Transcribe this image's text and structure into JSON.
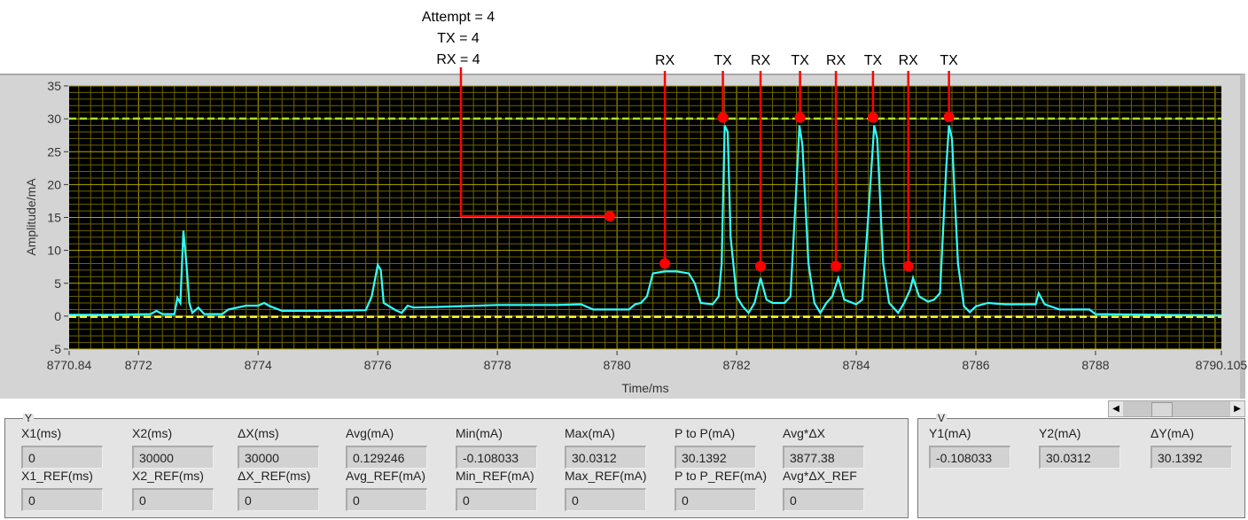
{
  "chart_data": {
    "type": "line",
    "xlabel": "Time/ms",
    "ylabel": "Amplitude/mA",
    "xlim": [
      8770.84,
      8790.105
    ],
    "ylim": [
      -5,
      35
    ],
    "x_tick_labels": [
      "8770.84",
      "8772",
      "8774",
      "8776",
      "8778",
      "8780",
      "8782",
      "8784",
      "8786",
      "8788",
      "8790.105"
    ],
    "x_ticks": [
      8770.84,
      8772,
      8774,
      8776,
      8778,
      8780,
      8782,
      8784,
      8786,
      8788,
      8790.105
    ],
    "y_ticks": [
      -5,
      0,
      5,
      10,
      15,
      20,
      25,
      30,
      35
    ],
    "y_tick_labels": [
      "-5",
      "0",
      "5",
      "10",
      "15",
      "20",
      "25",
      "30",
      "35"
    ],
    "grid": true,
    "colors": {
      "background": "#000000",
      "grid_major": "#b3a800",
      "grid_minor": "#6b6400",
      "trace": "#33ffff",
      "cursor_max": "#a6e22e",
      "cursor_min": "#ffff33",
      "annotation": "#ff0000"
    },
    "cursors": [
      {
        "value": 30.0312,
        "color": "#a6e22e"
      },
      {
        "value": -0.108033,
        "color": "#ffff33"
      }
    ],
    "series": [
      {
        "x": [
          8770.84,
          8771.5,
          8772.2,
          8772.3,
          8772.4,
          8772.6,
          8772.65,
          8772.7,
          8772.75,
          8772.8,
          8772.85,
          8772.9,
          8773.0,
          8773.1,
          8773.4,
          8773.5,
          8773.8,
          8774.0,
          8774.1,
          8774.2,
          8774.4,
          8775.0,
          8775.8,
          8775.9,
          8776.0,
          8776.05,
          8776.1,
          8776.3,
          8776.4,
          8776.5,
          8776.6,
          8777.0,
          8778.0,
          8779.0,
          8779.4,
          8779.6,
          8780.0,
          8780.2,
          8780.3,
          8780.4,
          8780.5,
          8780.6,
          8780.8,
          8781.0,
          8781.2,
          8781.3,
          8781.4,
          8781.6,
          8781.7,
          8781.75,
          8781.8,
          8781.85,
          8781.9,
          8782.0,
          8782.1,
          8782.2,
          8782.3,
          8782.4,
          8782.5,
          8782.6,
          8782.8,
          8782.9,
          8783.0,
          8783.05,
          8783.1,
          8783.2,
          8783.3,
          8783.4,
          8783.5,
          8783.6,
          8783.7,
          8783.8,
          8784.0,
          8784.1,
          8784.2,
          8784.3,
          8784.35,
          8784.45,
          8784.55,
          8784.7,
          8784.8,
          8784.9,
          8784.95,
          8785.05,
          8785.2,
          8785.3,
          8785.4,
          8785.5,
          8785.55,
          8785.6,
          8785.7,
          8785.8,
          8785.9,
          8786.0,
          8786.2,
          8786.5,
          8787.0,
          8787.05,
          8787.15,
          8787.4,
          8787.9,
          8788.0,
          8789.0,
          8790.105
        ],
        "y": [
          0.2,
          0.2,
          0.3,
          0.8,
          0.3,
          0.3,
          2.8,
          2.0,
          13.0,
          8.0,
          2.0,
          0.5,
          1.3,
          0.3,
          0.3,
          1.0,
          1.6,
          1.6,
          2.0,
          1.5,
          0.8,
          0.8,
          0.9,
          3.0,
          7.8,
          7.0,
          2.0,
          0.9,
          0.5,
          1.6,
          1.3,
          1.4,
          1.7,
          1.7,
          1.8,
          1.0,
          1.0,
          1.0,
          1.8,
          2.0,
          3.0,
          6.5,
          6.8,
          6.8,
          6.5,
          5.0,
          2.0,
          1.8,
          3.0,
          8.0,
          29.0,
          28.0,
          12.0,
          3.0,
          1.5,
          0.5,
          2.0,
          5.8,
          2.5,
          2.0,
          2.0,
          3.0,
          20.0,
          29.0,
          26.0,
          8.0,
          2.0,
          0.5,
          2.0,
          3.0,
          5.8,
          2.5,
          1.8,
          2.5,
          15.0,
          29.0,
          27.0,
          8.0,
          2.0,
          0.5,
          2.0,
          4.0,
          5.8,
          3.0,
          2.2,
          2.5,
          3.5,
          22.0,
          29.0,
          27.0,
          8.0,
          1.5,
          0.6,
          1.5,
          2.0,
          1.8,
          1.8,
          3.5,
          1.8,
          1.0,
          1.0,
          0.3,
          0.2,
          0.1
        ]
      }
    ],
    "annotations": {
      "summary": {
        "lines": [
          "Attempt = 4",
          "TX = 4",
          "RX = 4"
        ],
        "x": 8779.88,
        "y": 15.2
      },
      "markers": [
        {
          "label": "RX",
          "x": 8780.8,
          "y": 8.0
        },
        {
          "label": "TX",
          "x": 8781.77,
          "y": 30.2
        },
        {
          "label": "RX",
          "x": 8782.4,
          "y": 7.6
        },
        {
          "label": "TX",
          "x": 8783.06,
          "y": 30.2
        },
        {
          "label": "RX",
          "x": 8783.66,
          "y": 7.6
        },
        {
          "label": "TX",
          "x": 8784.28,
          "y": 30.2
        },
        {
          "label": "RX",
          "x": 8784.87,
          "y": 7.6
        },
        {
          "label": "TX",
          "x": 8785.55,
          "y": 30.3
        }
      ]
    }
  },
  "cursor_panel": {
    "title": "Y",
    "fields": [
      {
        "label": "X1(ms)",
        "value": "0"
      },
      {
        "label": "X2(ms)",
        "value": "30000"
      },
      {
        "label": "ΔX(ms)",
        "value": "30000"
      },
      {
        "label": "Avg(mA)",
        "value": "0.129246"
      },
      {
        "label": "Min(mA)",
        "value": "-0.108033"
      },
      {
        "label": "Max(mA)",
        "value": "30.0312"
      },
      {
        "label": "P to P(mA)",
        "value": "30.1392"
      },
      {
        "label": "Avg*ΔX",
        "value": "3877.38"
      },
      {
        "label": "X1_REF(ms)",
        "value": "0"
      },
      {
        "label": "X2_REF(ms)",
        "value": "0"
      },
      {
        "label": "ΔX_REF(ms)",
        "value": "0"
      },
      {
        "label": "Avg_REF(mA)",
        "value": "0"
      },
      {
        "label": "Min_REF(mA)",
        "value": "0"
      },
      {
        "label": "Max_REF(mA)",
        "value": "0"
      },
      {
        "label": "P to P_REF(mA)",
        "value": "0"
      },
      {
        "label": "Avg*ΔX_REF",
        "value": "0"
      }
    ]
  },
  "y_panel": {
    "title": "V",
    "fields": [
      {
        "label": "Y1(mA)",
        "value": "-0.108033"
      },
      {
        "label": "Y2(mA)",
        "value": "30.0312"
      },
      {
        "label": "ΔY(mA)",
        "value": "30.1392"
      }
    ]
  },
  "scrollbar": {
    "left_icon": "arrow-left-icon",
    "right_icon": "arrow-right-icon",
    "position": 0.35
  }
}
